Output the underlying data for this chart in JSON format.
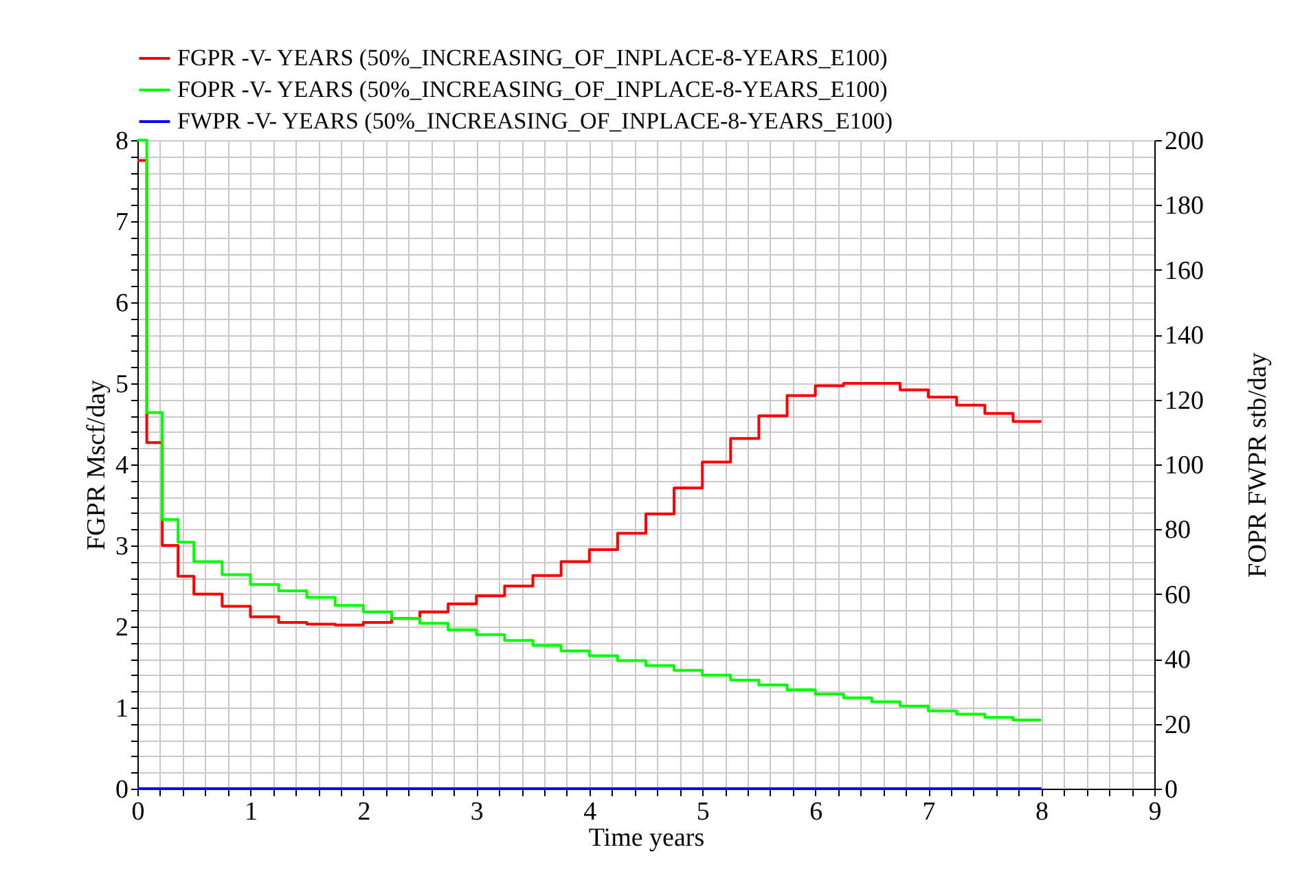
{
  "chart_data": {
    "type": "step",
    "xlabel": "Time years",
    "ylabel": "FGPR Mscf/day",
    "y2label": "FOPR  FWPR stb/day",
    "legend": "top left",
    "grid": true,
    "x": [
      0,
      0.083,
      0.22,
      0.36,
      0.5,
      0.75,
      1,
      1.25,
      1.5,
      1.75,
      2,
      2.25,
      2.5,
      2.75,
      3,
      3.25,
      3.5,
      3.75,
      4,
      4.25,
      4.5,
      4.75,
      5,
      5.25,
      5.5,
      5.75,
      6,
      6.25,
      6.5,
      6.75,
      7,
      7.25,
      7.5,
      7.75,
      8
    ],
    "series": [
      {
        "name": "FGPR -V- YEARS (50%_INCREASING_OF_INPLACE-8-YEARS_E100)",
        "color": "#ff0000",
        "values": [
          7.75,
          4.27,
          3.0,
          2.62,
          2.4,
          2.25,
          2.12,
          2.05,
          2.03,
          2.02,
          2.05,
          2.1,
          2.18,
          2.28,
          2.38,
          2.5,
          2.63,
          2.8,
          2.95,
          3.15,
          3.39,
          3.71,
          4.03,
          4.32,
          4.6,
          4.85,
          4.97,
          5.0,
          5.0,
          4.92,
          4.83,
          4.73,
          4.63,
          4.53,
          4.53
        ]
      },
      {
        "name": "FOPR -V- YEARS (50%_INCREASING_OF_INPLACE-8-YEARS_E100)",
        "color": "#00ff00",
        "axis": "y2",
        "values": [
          200,
          116,
          83,
          76,
          70,
          66,
          63,
          61,
          59,
          56.5,
          54.5,
          52.5,
          51,
          49,
          47.5,
          45.7,
          44.2,
          42.5,
          41,
          39.5,
          38,
          36.5,
          35,
          33.5,
          32,
          30.5,
          29.2,
          28,
          26.8,
          25.5,
          24,
          23,
          22,
          21.2,
          21.2
        ]
      },
      {
        "name": "FWPR -V- YEARS (50%_INCREASING_OF_INPLACE-8-YEARS_E100)",
        "color": "#0000ff",
        "axis": "y2",
        "values": [
          0,
          0,
          0,
          0,
          0,
          0,
          0,
          0,
          0,
          0,
          0,
          0,
          0,
          0,
          0,
          0,
          0,
          0,
          0,
          0,
          0,
          0,
          0,
          0,
          0,
          0,
          0,
          0,
          0,
          0,
          0,
          0,
          0,
          0,
          0
        ]
      }
    ],
    "xlim": [
      0,
      9
    ],
    "ylim": [
      0,
      8
    ],
    "y2lim": [
      0,
      200
    ],
    "xticks": [
      0,
      {
        "value": 0.2,
        "label": null
      },
      {
        "value": 0.4,
        "label": null
      },
      {
        "value": 0.6,
        "label": null
      },
      {
        "value": 0.8,
        "label": null
      },
      1,
      {
        "value": 1.2,
        "label": null
      },
      {
        "value": 1.4,
        "label": null
      },
      {
        "value": 1.6,
        "label": null
      },
      {
        "value": 1.8,
        "label": null
      },
      2,
      {
        "value": 2.2,
        "label": null
      },
      {
        "value": 2.4,
        "label": null
      },
      {
        "value": 2.6,
        "label": null
      },
      {
        "value": 2.8,
        "label": null
      },
      3,
      {
        "value": 3.2,
        "label": null
      },
      {
        "value": 3.4,
        "label": null
      },
      {
        "value": 3.6,
        "label": null
      },
      {
        "value": 3.8,
        "label": null
      },
      4,
      {
        "value": 4.2,
        "label": null
      },
      {
        "value": 4.4,
        "label": null
      },
      {
        "value": 4.6,
        "label": null
      },
      {
        "value": 4.8,
        "label": null
      },
      5,
      {
        "value": 5.2,
        "label": null
      },
      {
        "value": 5.4,
        "label": null
      },
      {
        "value": 5.6,
        "label": null
      },
      {
        "value": 5.8,
        "label": null
      },
      6,
      {
        "value": 6.2,
        "label": null
      },
      {
        "value": 6.4,
        "label": null
      },
      {
        "value": 6.6,
        "label": null
      },
      {
        "value": 6.8,
        "label": null
      },
      7,
      {
        "value": 7.2,
        "label": null
      },
      {
        "value": 7.4,
        "label": null
      },
      {
        "value": 7.6,
        "label": null
      },
      {
        "value": 7.8,
        "label": null
      },
      8,
      {
        "value": 8.2,
        "label": null
      },
      {
        "value": 8.4,
        "label": null
      },
      {
        "value": 8.6,
        "label": null
      },
      {
        "value": 8.8,
        "label": null
      },
      9
    ],
    "yticks": [
      0,
      {
        "value": 0.2,
        "label": null
      },
      {
        "value": 0.4,
        "label": null
      },
      {
        "value": 0.6,
        "label": null
      },
      {
        "value": 0.8,
        "label": null
      },
      1,
      {
        "value": 1.2,
        "label": null
      },
      {
        "value": 1.4,
        "label": null
      },
      {
        "value": 1.6,
        "label": null
      },
      {
        "value": 1.8,
        "label": null
      },
      2,
      {
        "value": 2.2,
        "label": null
      },
      {
        "value": 2.4,
        "label": null
      },
      {
        "value": 2.6,
        "label": null
      },
      {
        "value": 2.8,
        "label": null
      },
      3,
      {
        "value": 3.2,
        "label": null
      },
      {
        "value": 3.4,
        "label": null
      },
      {
        "value": 3.6,
        "label": null
      },
      {
        "value": 3.8,
        "label": null
      },
      4,
      {
        "value": 4.2,
        "label": null
      },
      {
        "value": 4.4,
        "label": null
      },
      {
        "value": 4.6,
        "label": null
      },
      {
        "value": 4.8,
        "label": null
      },
      5,
      {
        "value": 5.2,
        "label": null
      },
      {
        "value": 5.4,
        "label": null
      },
      {
        "value": 5.6,
        "label": null
      },
      {
        "value": 5.8,
        "label": null
      },
      6,
      {
        "value": 6.2,
        "label": null
      },
      {
        "value": 6.4,
        "label": null
      },
      {
        "value": 6.6,
        "label": null
      },
      {
        "value": 6.8,
        "label": null
      },
      7,
      {
        "value": 7.2,
        "label": null
      },
      {
        "value": 7.4,
        "label": null
      },
      {
        "value": 7.6,
        "label": null
      },
      {
        "value": 7.8,
        "label": null
      },
      8
    ],
    "y2ticks": [
      0,
      20,
      40,
      60,
      80,
      100,
      120,
      140,
      160,
      180,
      200
    ]
  }
}
